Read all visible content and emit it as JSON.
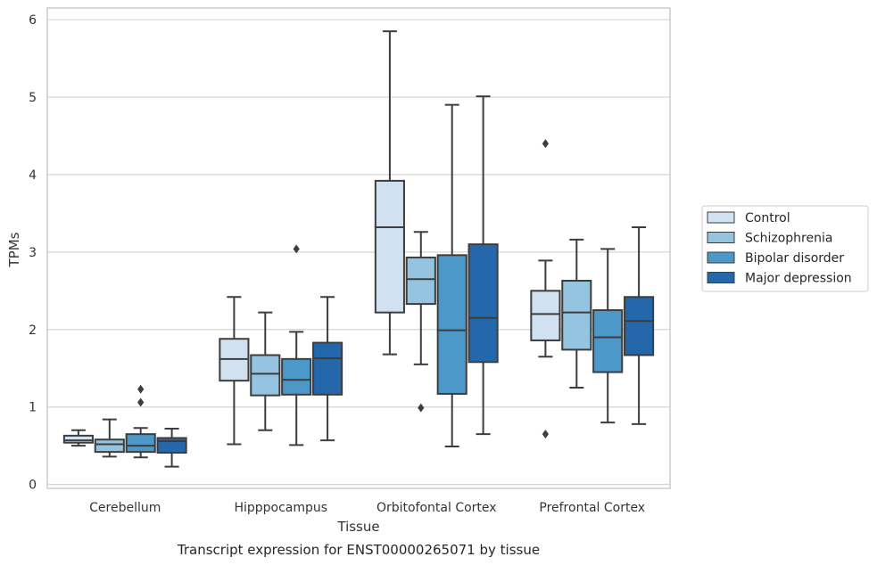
{
  "caption": "Transcript expression for ENST00000265071 by tissue",
  "chart_data": {
    "type": "box",
    "xlabel": "Tissue",
    "ylabel": "TPMs",
    "ylim": [
      -0.05,
      6.15
    ],
    "yticks": [
      "0",
      "1",
      "2",
      "3",
      "4",
      "5",
      "6"
    ],
    "grid": true,
    "legend_position": "right",
    "categories": [
      "Cerebellum",
      "Hipppocampus",
      "Orbitofontal Cortex",
      "Prefrontal Cortex"
    ],
    "series": [
      {
        "name": "Control",
        "color": "#d0e1f2",
        "boxes": [
          {
            "whisker_low": 0.5,
            "q1": 0.54,
            "median": 0.57,
            "q3": 0.63,
            "whisker_high": 0.7,
            "outliers": []
          },
          {
            "whisker_low": 0.52,
            "q1": 1.34,
            "median": 1.62,
            "q3": 1.88,
            "whisker_high": 2.42,
            "outliers": []
          },
          {
            "whisker_low": 1.68,
            "q1": 2.22,
            "median": 3.32,
            "q3": 3.92,
            "whisker_high": 5.85,
            "outliers": []
          },
          {
            "whisker_low": 1.65,
            "q1": 1.86,
            "median": 2.2,
            "q3": 2.5,
            "whisker_high": 2.89,
            "outliers": [
              4.4,
              0.65
            ]
          }
        ]
      },
      {
        "name": "Schizophrenia",
        "color": "#94c4df",
        "boxes": [
          {
            "whisker_low": 0.36,
            "q1": 0.42,
            "median": 0.52,
            "q3": 0.58,
            "whisker_high": 0.84,
            "outliers": []
          },
          {
            "whisker_low": 0.7,
            "q1": 1.15,
            "median": 1.43,
            "q3": 1.67,
            "whisker_high": 2.22,
            "outliers": []
          },
          {
            "whisker_low": 1.55,
            "q1": 2.33,
            "median": 2.65,
            "q3": 2.93,
            "whisker_high": 3.26,
            "outliers": [
              0.99
            ]
          },
          {
            "whisker_low": 1.25,
            "q1": 1.74,
            "median": 2.22,
            "q3": 2.63,
            "whisker_high": 3.16,
            "outliers": []
          }
        ]
      },
      {
        "name": "Bipolar disorder",
        "color": "#4b98c9",
        "boxes": [
          {
            "whisker_low": 0.35,
            "q1": 0.42,
            "median": 0.5,
            "q3": 0.65,
            "whisker_high": 0.73,
            "outliers": [
              1.23,
              1.06
            ]
          },
          {
            "whisker_low": 0.51,
            "q1": 1.16,
            "median": 1.35,
            "q3": 1.62,
            "whisker_high": 1.97,
            "outliers": [
              3.04
            ]
          },
          {
            "whisker_low": 0.49,
            "q1": 1.17,
            "median": 1.99,
            "q3": 2.96,
            "whisker_high": 4.9,
            "outliers": []
          },
          {
            "whisker_low": 0.8,
            "q1": 1.45,
            "median": 1.9,
            "q3": 2.25,
            "whisker_high": 3.04,
            "outliers": []
          }
        ]
      },
      {
        "name": "Major depression",
        "color": "#2467aa",
        "boxes": [
          {
            "whisker_low": 0.23,
            "q1": 0.41,
            "median": 0.56,
            "q3": 0.6,
            "whisker_high": 0.72,
            "outliers": []
          },
          {
            "whisker_low": 0.57,
            "q1": 1.16,
            "median": 1.63,
            "q3": 1.83,
            "whisker_high": 2.42,
            "outliers": []
          },
          {
            "whisker_low": 0.65,
            "q1": 1.58,
            "median": 2.15,
            "q3": 3.1,
            "whisker_high": 5.01,
            "outliers": []
          },
          {
            "whisker_low": 0.78,
            "q1": 1.67,
            "median": 2.11,
            "q3": 2.42,
            "whisker_high": 3.32,
            "outliers": []
          }
        ]
      }
    ]
  }
}
